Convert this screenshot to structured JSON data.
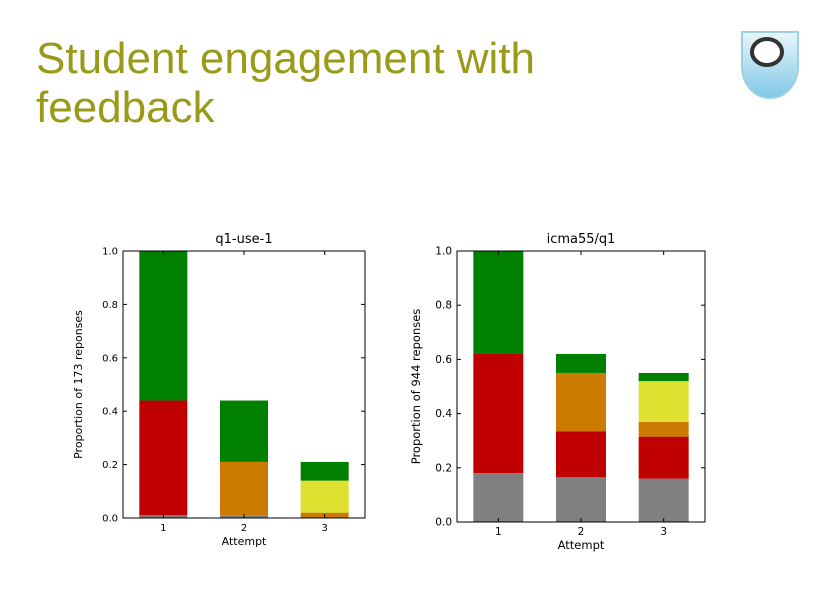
{
  "slide": {
    "title": "Student engagement with\nfeedback"
  },
  "logo": {
    "icon": "open-university-shield-logo"
  },
  "colors": {
    "title": "#9a9a1a",
    "green": "#008000",
    "red": "#c00000",
    "orange": "#cc7a00",
    "yellow": "#e0e030",
    "gray": "#808080"
  },
  "chart_data": [
    {
      "type": "bar",
      "stacked": true,
      "title": "q1-use-1",
      "xlabel": "Attempt",
      "ylabel": "Proportion of 173 reponses",
      "categories": [
        "1",
        "2",
        "3"
      ],
      "ylim": [
        0,
        1.0
      ],
      "yticks": [
        "0.0",
        "0.2",
        "0.4",
        "0.6",
        "0.8",
        "1.0"
      ],
      "series": [
        {
          "color": "#808080",
          "values": [
            0.01,
            0.01,
            0.0
          ]
        },
        {
          "color": "#c00000",
          "values": [
            0.43,
            0.0,
            0.0
          ]
        },
        {
          "color": "#cc7a00",
          "values": [
            0.0,
            0.2,
            0.02
          ]
        },
        {
          "color": "#e0e030",
          "values": [
            0.0,
            0.0,
            0.12
          ]
        },
        {
          "color": "#008000",
          "values": [
            0.56,
            0.23,
            0.07
          ]
        }
      ]
    },
    {
      "type": "bar",
      "stacked": true,
      "title": "icma55/q1",
      "xlabel": "Attempt",
      "ylabel": "Proportion of 944 reponses",
      "categories": [
        "1",
        "2",
        "3"
      ],
      "ylim": [
        0,
        1.0
      ],
      "yticks": [
        "0.0",
        "0.2",
        "0.4",
        "0.6",
        "0.8",
        "1.0"
      ],
      "series": [
        {
          "color": "#808080",
          "values": [
            0.18,
            0.165,
            0.16
          ]
        },
        {
          "color": "#c00000",
          "values": [
            0.44,
            0.17,
            0.155
          ]
        },
        {
          "color": "#cc7a00",
          "values": [
            0.0,
            0.215,
            0.055
          ]
        },
        {
          "color": "#e0e030",
          "values": [
            0.0,
            0.0,
            0.15
          ]
        },
        {
          "color": "#008000",
          "values": [
            0.38,
            0.07,
            0.03
          ]
        }
      ]
    }
  ]
}
